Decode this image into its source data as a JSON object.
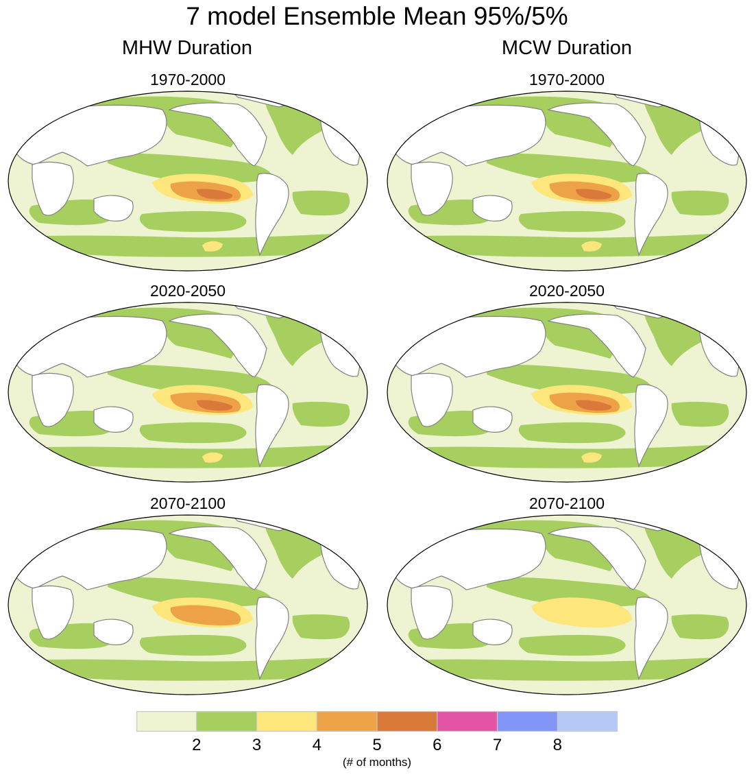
{
  "figure": {
    "title": "7 model Ensemble Mean 95%/5%",
    "columns": [
      {
        "heading": "MHW Duration"
      },
      {
        "heading": "MCW Duration"
      }
    ],
    "panels": [
      {
        "column": "MHW Duration",
        "period": "1970-2000",
        "max_class": "5-6"
      },
      {
        "column": "MCW Duration",
        "period": "1970-2000",
        "max_class": "5-6"
      },
      {
        "column": "MHW Duration",
        "period": "2020-2050",
        "max_class": "5-6"
      },
      {
        "column": "MCW Duration",
        "period": "2020-2050",
        "max_class": "5-6"
      },
      {
        "column": "MHW Duration",
        "period": "2070-2100",
        "max_class": "4-5"
      },
      {
        "column": "MCW Duration",
        "period": "2070-2100",
        "max_class": "3-4"
      }
    ]
  },
  "colorbar": {
    "ticks": [
      "2",
      "3",
      "4",
      "5",
      "6",
      "7",
      "8"
    ],
    "units": "(# of months)",
    "colors": [
      "#eef4d2",
      "#a6cf60",
      "#fde67c",
      "#eda247",
      "#d97a3a",
      "#e354a4",
      "#8196f6",
      "#b6c8f6"
    ]
  },
  "map_colors": {
    "land": "#ffffff",
    "coast": "#808080",
    "ocean_low": "#eef4d2",
    "c2_3": "#a6cf60",
    "c3_4": "#fde67c",
    "c4_5": "#eda247",
    "c5_6": "#d97a3a"
  }
}
